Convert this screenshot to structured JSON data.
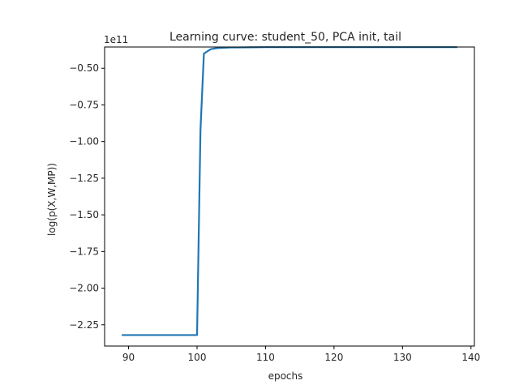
{
  "chart_data": {
    "type": "line",
    "title": "Learning curve: student_50, PCA init, tail",
    "xlabel": "epochs",
    "ylabel": "log(p(X,W,MP))",
    "y_offset_label": "1e11",
    "xlim": [
      86.5,
      140.5
    ],
    "ylim": [
      -2.395,
      -0.355
    ],
    "x_ticks": [
      90,
      100,
      110,
      120,
      130,
      140
    ],
    "x_tick_labels": [
      "90",
      "100",
      "110",
      "120",
      "130",
      "140"
    ],
    "y_ticks": [
      -2.25,
      -2.0,
      -1.75,
      -1.5,
      -1.25,
      -1.0,
      -0.75,
      -0.5
    ],
    "y_tick_labels": [
      "−2.25",
      "−2.00",
      "−1.75",
      "−1.50",
      "−1.25",
      "−1.00",
      "−0.75",
      "−0.50"
    ],
    "grid": false,
    "series": [
      {
        "color": "#1f77b4",
        "x": [
          89,
          90,
          91,
          92,
          93,
          94,
          95,
          96,
          97,
          98,
          99,
          100,
          100.5,
          101,
          102,
          103,
          104,
          105,
          106,
          108,
          110,
          115,
          120,
          125,
          130,
          135,
          138
        ],
        "y": [
          -2.32,
          -2.32,
          -2.32,
          -2.32,
          -2.32,
          -2.32,
          -2.32,
          -2.32,
          -2.32,
          -2.32,
          -2.32,
          -2.32,
          -0.92,
          -0.4,
          -0.37,
          -0.362,
          -0.36,
          -0.358,
          -0.358,
          -0.357,
          -0.356,
          -0.356,
          -0.356,
          -0.356,
          -0.356,
          -0.356,
          -0.356
        ]
      }
    ]
  }
}
